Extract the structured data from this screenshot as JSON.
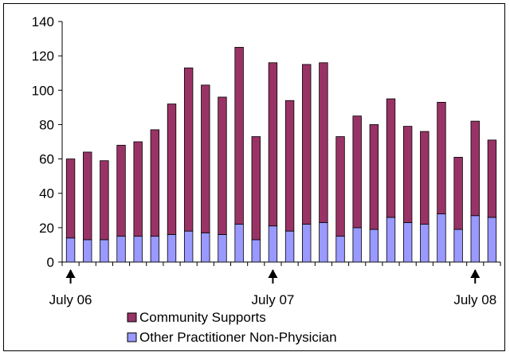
{
  "chart_data": {
    "type": "bar",
    "stacked": true,
    "title": "",
    "xlabel": "",
    "ylabel": "",
    "ylim": [
      0,
      140
    ],
    "yticks": [
      0,
      20,
      40,
      60,
      80,
      100,
      120,
      140
    ],
    "grid": false,
    "legend_position": "bottom",
    "series": [
      {
        "name": "Other Practitioner Non-Physician",
        "color": "#9999ff",
        "values": [
          14,
          13,
          13,
          15,
          15,
          15,
          16,
          18,
          17,
          16,
          22,
          13,
          21,
          18,
          22,
          23,
          15,
          20,
          19,
          26,
          23,
          22,
          28,
          19,
          27,
          26
        ]
      },
      {
        "name": "Community Supports",
        "color": "#993366",
        "values": [
          46,
          51,
          46,
          53,
          55,
          62,
          76,
          95,
          86,
          80,
          103,
          60,
          95,
          76,
          93,
          93,
          58,
          65,
          61,
          69,
          56,
          54,
          65,
          42,
          55,
          45
        ]
      }
    ],
    "category_count": 26,
    "annotations": [
      {
        "label": "July 06",
        "index": 0
      },
      {
        "label": "July 07",
        "index": 12
      },
      {
        "label": "July 08",
        "index": 24
      }
    ]
  }
}
